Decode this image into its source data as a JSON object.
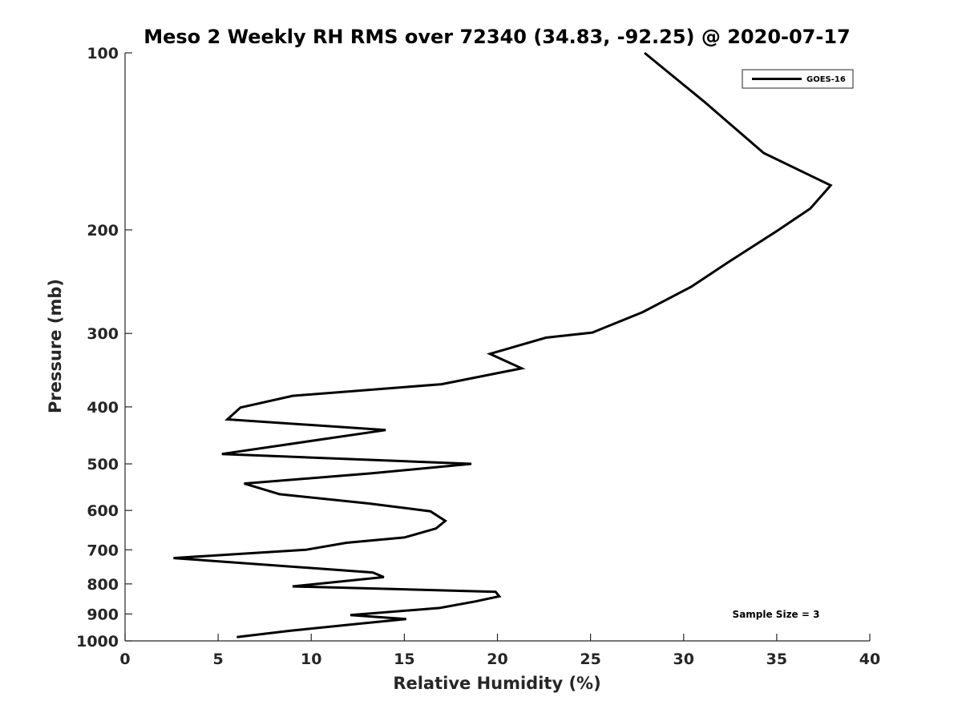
{
  "chart_data": {
    "type": "line",
    "title": "Meso 2 Weekly RH RMS over 72340 (34.83, -92.25) @ 2020-07-17",
    "xlabel": "Relative Humidity (%)",
    "ylabel": "Pressure (mb)",
    "xlim": [
      0,
      40
    ],
    "ylim": [
      100,
      1000
    ],
    "yscale": "log",
    "yaxis_inverted": true,
    "x_ticks": [
      "0",
      "5",
      "10",
      "15",
      "20",
      "25",
      "30",
      "35",
      "40"
    ],
    "x_tick_values": [
      0,
      5,
      10,
      15,
      20,
      25,
      30,
      35,
      40
    ],
    "y_ticks": [
      "100",
      "200",
      "300",
      "400",
      "500",
      "600",
      "700",
      "800",
      "900",
      "1000"
    ],
    "y_tick_values": [
      100,
      200,
      300,
      400,
      500,
      600,
      700,
      800,
      900,
      1000
    ],
    "grid": false,
    "legend_position": "top-right",
    "series": [
      {
        "name": "GOES-16",
        "color": "#000000",
        "points": [
          [
            27.9,
            100
          ],
          [
            29.5,
            110
          ],
          [
            31.1,
            121
          ],
          [
            32.6,
            133
          ],
          [
            34.3,
            148
          ],
          [
            37.9,
            168
          ],
          [
            36.8,
            184
          ],
          [
            35.0,
            201
          ],
          [
            32.4,
            227
          ],
          [
            30.4,
            250
          ],
          [
            27.8,
            276
          ],
          [
            25.1,
            299
          ],
          [
            22.6,
            305
          ],
          [
            19.6,
            325
          ],
          [
            21.3,
            344
          ],
          [
            17.0,
            366
          ],
          [
            9.0,
            383
          ],
          [
            6.2,
            401
          ],
          [
            5.5,
            420
          ],
          [
            14.0,
            438
          ],
          [
            5.2,
            481
          ],
          [
            18.6,
            500
          ],
          [
            13.2,
            519
          ],
          [
            6.4,
            540
          ],
          [
            8.3,
            563
          ],
          [
            13.1,
            584
          ],
          [
            16.4,
            602
          ],
          [
            17.2,
            625
          ],
          [
            16.7,
            644
          ],
          [
            15.0,
            667
          ],
          [
            11.9,
            681
          ],
          [
            9.7,
            700
          ],
          [
            2.6,
            723
          ],
          [
            13.3,
            765
          ],
          [
            13.9,
            779
          ],
          [
            9.0,
            808
          ],
          [
            19.9,
            825
          ],
          [
            20.1,
            840
          ],
          [
            18.8,
            857
          ],
          [
            16.9,
            879
          ],
          [
            12.1,
            904
          ],
          [
            15.1,
            918
          ],
          [
            12.7,
            934
          ],
          [
            8.9,
            961
          ],
          [
            6.0,
            985
          ]
        ]
      }
    ],
    "annotations": [
      "Sample Size = 3"
    ]
  }
}
